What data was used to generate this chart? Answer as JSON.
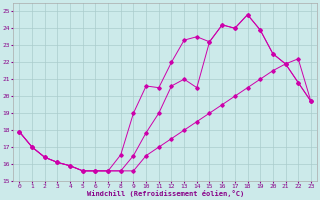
{
  "xlabel": "Windchill (Refroidissement éolien,°C)",
  "ylabel": "",
  "bg_color": "#cceaea",
  "grid_color": "#aacccc",
  "line_color": "#cc00aa",
  "xlim": [
    -0.5,
    23.5
  ],
  "ylim": [
    15,
    25.5
  ],
  "xticks": [
    0,
    1,
    2,
    3,
    4,
    5,
    6,
    7,
    8,
    9,
    10,
    11,
    12,
    13,
    14,
    15,
    16,
    17,
    18,
    19,
    20,
    21,
    22,
    23
  ],
  "yticks": [
    15,
    16,
    17,
    18,
    19,
    20,
    21,
    22,
    23,
    24,
    25
  ],
  "line1_x": [
    0,
    1,
    2,
    3,
    4,
    5,
    6,
    7,
    8,
    9,
    10,
    11,
    12,
    13,
    14,
    15,
    16,
    17,
    18,
    19,
    20,
    21,
    22,
    23
  ],
  "line1_y": [
    17.9,
    17.0,
    16.4,
    16.1,
    15.9,
    15.6,
    15.6,
    15.6,
    15.6,
    16.5,
    17.85,
    19.0,
    20.6,
    21.0,
    20.5,
    23.2,
    24.2,
    24.0,
    24.8,
    23.9,
    22.5,
    21.9,
    20.8,
    19.7
  ],
  "line2_x": [
    0,
    1,
    2,
    3,
    4,
    5,
    6,
    7,
    8,
    9,
    10,
    11,
    12,
    13,
    14,
    15,
    16,
    17,
    18,
    19,
    20,
    21,
    22,
    23
  ],
  "line2_y": [
    17.9,
    17.0,
    16.4,
    16.1,
    15.9,
    15.6,
    15.6,
    15.6,
    16.55,
    19.0,
    20.6,
    20.5,
    22.0,
    23.3,
    23.5,
    23.2,
    24.2,
    24.0,
    24.8,
    23.9,
    22.5,
    21.9,
    20.8,
    19.7
  ],
  "line3_x": [
    0,
    1,
    2,
    3,
    4,
    5,
    6,
    7,
    8,
    9,
    10,
    11,
    12,
    13,
    14,
    15,
    16,
    17,
    18,
    19,
    20,
    21,
    22,
    23
  ],
  "line3_y": [
    17.9,
    17.0,
    16.4,
    16.1,
    15.9,
    15.6,
    15.6,
    15.6,
    15.6,
    15.6,
    16.5,
    17.0,
    17.5,
    18.0,
    18.5,
    19.0,
    19.5,
    20.0,
    20.5,
    21.0,
    21.5,
    21.9,
    22.2,
    19.7
  ]
}
